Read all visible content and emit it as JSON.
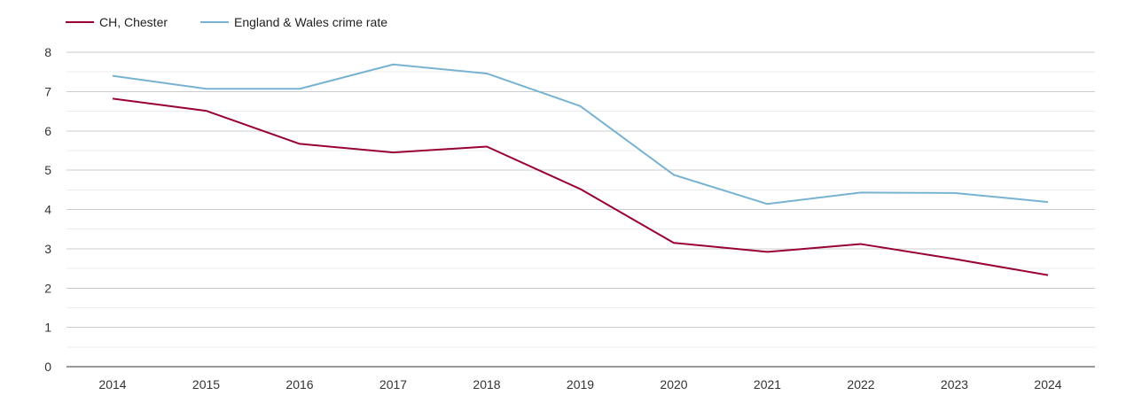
{
  "chart_data": {
    "type": "line",
    "title": "",
    "xlabel": "",
    "ylabel": "",
    "categories": [
      "2014",
      "2015",
      "2016",
      "2017",
      "2018",
      "2019",
      "2020",
      "2021",
      "2022",
      "2023",
      "2024"
    ],
    "ylim": [
      0,
      8
    ],
    "yticks": [
      "0",
      "1",
      "2",
      "3",
      "4",
      "5",
      "6",
      "7",
      "8"
    ],
    "grid": true,
    "legend_position": "top-left",
    "series": [
      {
        "name": "CH, Chester",
        "color": "#990033",
        "values": [
          6.82,
          6.51,
          5.67,
          5.45,
          5.6,
          4.52,
          3.15,
          2.92,
          3.12,
          2.74,
          2.33
        ]
      },
      {
        "name": "England & Wales crime rate",
        "color": "#77b3d1",
        "values": [
          7.4,
          7.07,
          7.07,
          7.69,
          7.46,
          6.63,
          4.88,
          4.14,
          4.43,
          4.42,
          4.19
        ]
      }
    ]
  }
}
